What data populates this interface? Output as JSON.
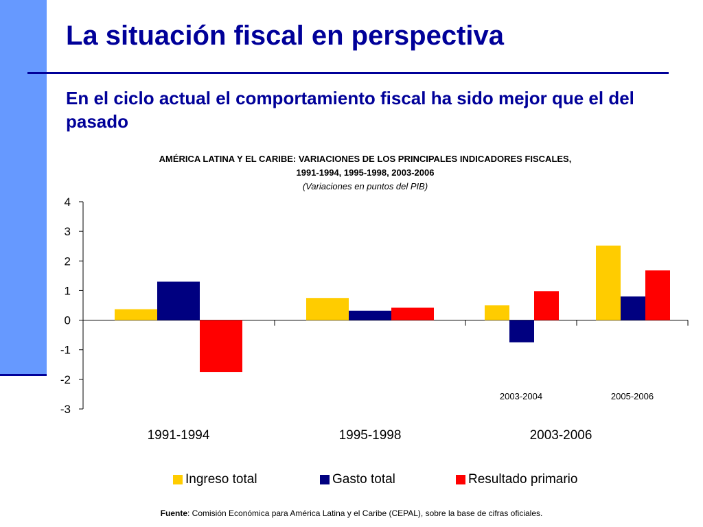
{
  "slide": {
    "title": "La situación fiscal en perspectiva",
    "subtitle": "En el ciclo actual el comportamiento fiscal ha sido mejor que el del pasado"
  },
  "chart_header": {
    "title_line1": "AMÉRICA LATINA Y EL CARIBE: VARIACIONES DE LOS PRINCIPALES INDICADORES FISCALES,",
    "title_line2": "1991-1994, 1995-1998, 2003-2006",
    "units": "(Variaciones en puntos del PIB)"
  },
  "chart_data": {
    "type": "bar",
    "ylim": [
      -3,
      4
    ],
    "y_ticks": [
      -3,
      -2,
      -1,
      0,
      1,
      2,
      3,
      4
    ],
    "grid": false,
    "legend_position": "bottom",
    "x": [
      "1991-1994",
      "1995-1998",
      "2003-2004",
      "2005-2006"
    ],
    "group_labels": [
      "1991-1994",
      "1995-1998",
      "2003-2006"
    ],
    "subperiod_labels": [
      "2003-2004",
      "2005-2006"
    ],
    "series": [
      {
        "name": "Ingreso total",
        "color": "#ffcc00",
        "values": [
          0.37,
          0.75,
          0.5,
          2.52
        ]
      },
      {
        "name": "Gasto total",
        "color": "#000080",
        "values": [
          1.3,
          0.32,
          -0.75,
          0.8
        ]
      },
      {
        "name": "Resultado primario",
        "color": "#ff0000",
        "values": [
          -1.75,
          0.42,
          0.98,
          1.68
        ]
      }
    ]
  },
  "legend": {
    "items": [
      "Ingreso total",
      "Gasto total",
      "Resultado primario"
    ]
  },
  "source": {
    "label": "Fuente",
    "text": ": Comisión Económica para América Latina y el Caribe (CEPAL), sobre la base de cifras oficiales."
  }
}
